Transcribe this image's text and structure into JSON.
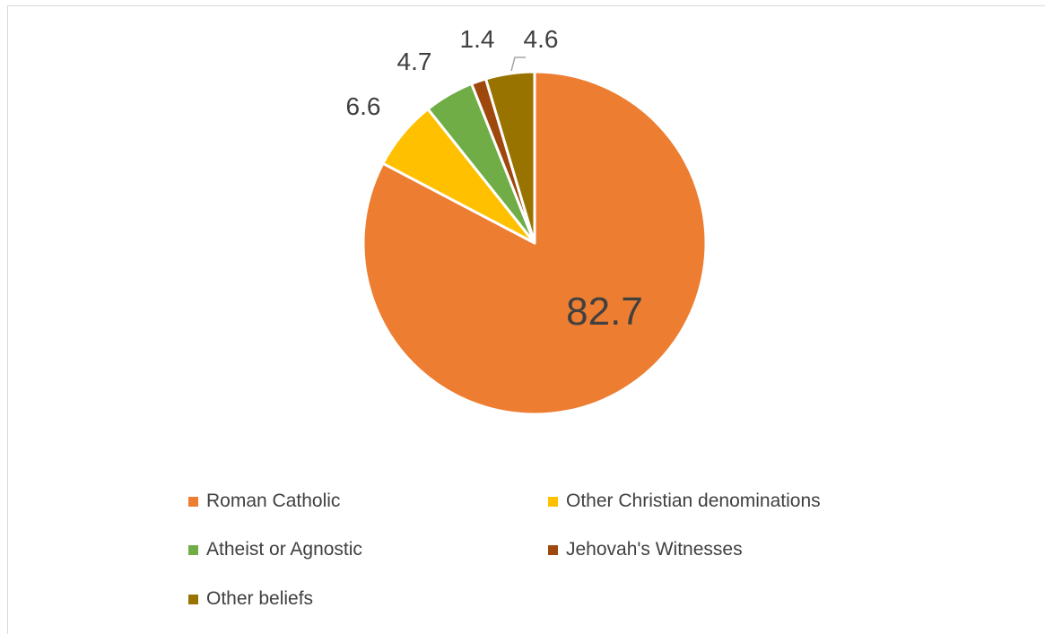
{
  "chart_data": {
    "type": "pie",
    "title": "",
    "slices": [
      {
        "name": "Roman Catholic",
        "value": 82.7,
        "label": "82.7",
        "color": "#ED7D31"
      },
      {
        "name": "Other Christian denominations",
        "value": 6.6,
        "label": "6.6",
        "color": "#FFC000"
      },
      {
        "name": "Atheist or Agnostic",
        "value": 4.7,
        "label": "4.7",
        "color": "#70AD47"
      },
      {
        "name": "Jehovah's Witnesses",
        "value": 1.4,
        "label": "1.4",
        "color": "#9E480E"
      },
      {
        "name": "Other beliefs",
        "value": 4.6,
        "label": "4.6",
        "color": "#997300"
      }
    ],
    "start_angle": "12 o'clock",
    "direction": "clockwise",
    "legend_position": "bottom",
    "label_color": "#404040"
  }
}
